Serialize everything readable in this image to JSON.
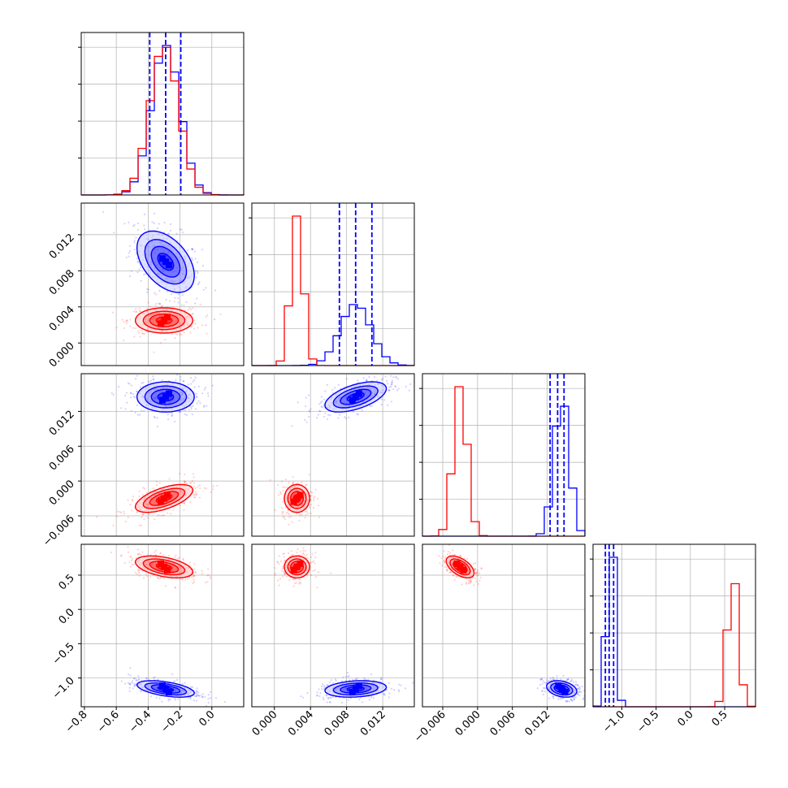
{
  "figure": {
    "type": "corner_plot"
  },
  "colors": {
    "blue": "#0000ff",
    "red": "#ff0000",
    "grid": "#b0b0b0",
    "frame": "#000000"
  },
  "chart_data": {
    "type": "corner",
    "grid": true,
    "parameters": [
      {
        "range": [
          -0.82,
          0.2
        ],
        "ticks": [
          -0.8,
          -0.6,
          -0.4,
          -0.2,
          0.0
        ],
        "tick_labels": [
          "−0.8",
          "−0.6",
          "−0.4",
          "−0.2",
          "0.0"
        ]
      },
      {
        "range": [
          -0.0025,
          0.0155
        ],
        "ticks": [
          0.0,
          0.004,
          0.008,
          0.012
        ],
        "tick_labels": [
          "0.000",
          "0.004",
          "0.008",
          "0.012"
        ]
      },
      {
        "range": [
          -0.0095,
          0.0185
        ],
        "ticks": [
          -0.006,
          0.0,
          0.006,
          0.012
        ],
        "tick_labels": [
          "−0.006",
          "0.000",
          "0.006",
          "0.012"
        ]
      },
      {
        "range": [
          -1.42,
          0.95
        ],
        "ticks": [
          -1.0,
          -0.5,
          0.0,
          0.5
        ],
        "tick_labels": [
          "−1.0",
          "−0.5",
          "0.0",
          "0.5"
        ]
      }
    ],
    "series": [
      {
        "color": "#0000ff",
        "means": [
          -0.29,
          0.009,
          0.0145,
          -1.16
        ],
        "sigmas": [
          0.09,
          0.0017,
          0.0013,
          0.06
        ],
        "quantiles": [
          [
            -0.39,
            -0.29,
            -0.195
          ],
          [
            0.0072,
            0.009,
            0.0108
          ],
          [
            0.0125,
            0.0138,
            0.0149
          ],
          [
            -1.24,
            -1.185,
            -1.12
          ]
        ]
      },
      {
        "color": "#ff0000",
        "means": [
          -0.3,
          0.0025,
          -0.003,
          0.62
        ],
        "sigmas": [
          0.09,
          0.0007,
          0.0012,
          0.08
        ]
      }
    ],
    "pairs": [
      {
        "row": 1,
        "col": 0,
        "blue_rho": -0.45,
        "red_rho": 0.0
      },
      {
        "row": 2,
        "col": 0,
        "blue_rho": 0.0,
        "red_rho": 0.6
      },
      {
        "row": 2,
        "col": 1,
        "blue_rho": 0.55,
        "red_rho": 0.0
      },
      {
        "row": 3,
        "col": 0,
        "blue_rho": -0.5,
        "red_rho": -0.45
      },
      {
        "row": 3,
        "col": 1,
        "blue_rho": 0.2,
        "red_rho": 0.0
      },
      {
        "row": 3,
        "col": 2,
        "blue_rho": -0.3,
        "red_rho": -0.55
      }
    ]
  }
}
